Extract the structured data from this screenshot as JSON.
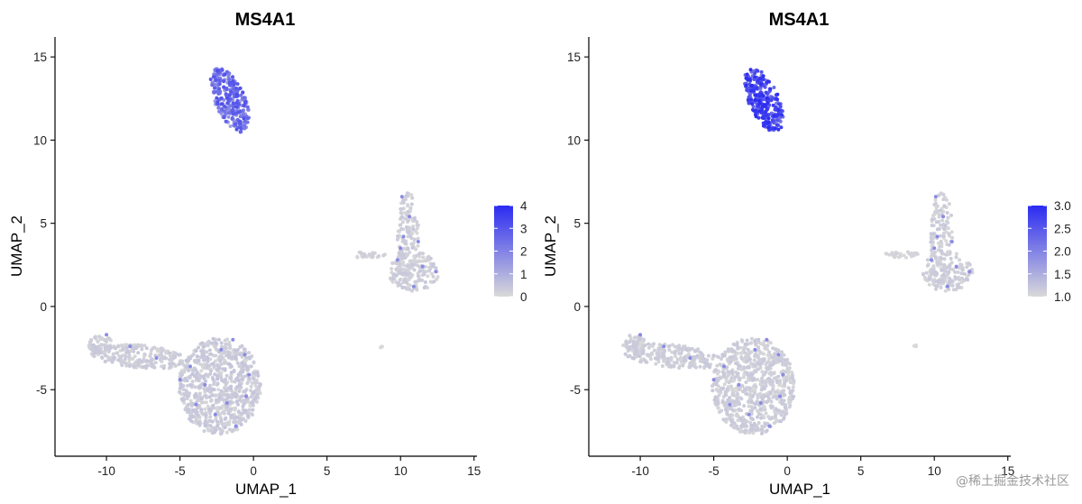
{
  "watermark": "@稀土掘金技术社区",
  "chart_data": [
    {
      "type": "scatter",
      "title": "MS4A1",
      "xlabel": "UMAP_1",
      "ylabel": "UMAP_2",
      "xlim": [
        -13.5,
        15.2
      ],
      "ylim": [
        -9,
        16.2
      ],
      "x_ticks": [
        -10,
        -5,
        0,
        5,
        10,
        15
      ],
      "x_tick_labels": [
        "-10",
        "-5",
        "0",
        "5",
        "10",
        "15"
      ],
      "y_ticks": [
        -5,
        0,
        5,
        10,
        15
      ],
      "y_tick_labels": [
        "-5",
        "0",
        "5",
        "10",
        "15"
      ],
      "legend": {
        "position": "right",
        "type": "colorbar",
        "range": [
          0,
          4
        ],
        "ticks": [
          0,
          1,
          2,
          3,
          4
        ],
        "tick_labels": [
          "0",
          "1",
          "2",
          "3",
          "4"
        ],
        "low_color": "#d9d9d9",
        "high_color": "#2b2bf2"
      },
      "clusters": [
        {
          "shape": "ellipse",
          "cx": -1.6,
          "cy": 12.4,
          "rx": 1.0,
          "ry": 2.1,
          "angle": 28,
          "n": 300,
          "vmin": 1.2,
          "vmax": 3.2
        },
        {
          "shape": "ellipse",
          "cx": 10.5,
          "cy": 4.2,
          "rx": 0.75,
          "ry": 2.7,
          "angle": 0,
          "n": 130,
          "vmin": 0,
          "vmax": 0.4
        },
        {
          "shape": "ellipse",
          "cx": 10.9,
          "cy": 2.1,
          "rx": 1.7,
          "ry": 1.2,
          "angle": 0,
          "n": 150,
          "vmin": 0,
          "vmax": 0.4
        },
        {
          "shape": "ellipse",
          "cx": 7.8,
          "cy": 3.1,
          "rx": 1.2,
          "ry": 0.2,
          "angle": 0,
          "n": 28,
          "vmin": 0,
          "vmax": 0.3
        },
        {
          "shape": "ellipse",
          "cx": -2.3,
          "cy": -4.8,
          "rx": 2.8,
          "ry": 2.9,
          "angle": 0,
          "n": 750,
          "vmin": 0,
          "vmax": 0.5
        },
        {
          "shape": "ellipse",
          "cx": -7.8,
          "cy": -3.0,
          "rx": 3.3,
          "ry": 0.7,
          "angle": -5,
          "n": 220,
          "vmin": 0,
          "vmax": 0.4
        },
        {
          "shape": "ellipse",
          "cx": -10.4,
          "cy": -2.3,
          "rx": 0.8,
          "ry": 0.6,
          "angle": 0,
          "n": 60,
          "vmin": 0,
          "vmax": 0.4
        },
        {
          "shape": "ellipse",
          "cx": 8.7,
          "cy": -2.4,
          "rx": 0.08,
          "ry": 0.12,
          "angle": 0,
          "n": 4,
          "vmin": 0,
          "vmax": 0
        }
      ],
      "highlight_points": [
        [
          10.1,
          6.6
        ],
        [
          10.6,
          5.4
        ],
        [
          10.2,
          4.2
        ],
        [
          11.2,
          3.9
        ],
        [
          10.0,
          3.5
        ],
        [
          9.8,
          2.8
        ],
        [
          11.5,
          2.4
        ],
        [
          12.4,
          2.1
        ],
        [
          10.9,
          1.2
        ],
        [
          -10.0,
          -1.7
        ],
        [
          -8.4,
          -2.4
        ],
        [
          -6.6,
          -3.1
        ],
        [
          -4.3,
          -3.6
        ],
        [
          -2.2,
          -2.6
        ],
        [
          -1.4,
          -2.0
        ],
        [
          -0.6,
          -2.9
        ],
        [
          -3.3,
          -4.7
        ],
        [
          -1.8,
          -5.8
        ],
        [
          -0.5,
          -5.4
        ],
        [
          -2.6,
          -6.5
        ],
        [
          -3.9,
          -5.9
        ],
        [
          -1.2,
          -7.2
        ],
        [
          -5.0,
          -4.4
        ],
        [
          -0.3,
          -4.1
        ]
      ],
      "seed": 7
    },
    {
      "type": "scatter",
      "title": "MS4A1",
      "xlabel": "UMAP_1",
      "ylabel": "UMAP_2",
      "xlim": [
        -13.5,
        15.2
      ],
      "ylim": [
        -9,
        16.2
      ],
      "x_ticks": [
        -10,
        -5,
        0,
        5,
        10,
        15
      ],
      "x_tick_labels": [
        "-10",
        "-5",
        "0",
        "5",
        "10",
        "15"
      ],
      "y_ticks": [
        -5,
        0,
        5,
        10,
        15
      ],
      "y_tick_labels": [
        "-5",
        "0",
        "5",
        "10",
        "15"
      ],
      "legend": {
        "position": "right",
        "type": "colorbar",
        "range": [
          1.0,
          3.0
        ],
        "ticks": [
          1.0,
          1.5,
          2.0,
          2.5,
          3.0
        ],
        "tick_labels": [
          "1.0",
          "1.5",
          "2.0",
          "2.5",
          "3.0"
        ],
        "low_color": "#d9d9d9",
        "high_color": "#2b2bf2"
      },
      "clusters": [
        {
          "shape": "ellipse",
          "cx": -1.6,
          "cy": 12.4,
          "rx": 1.0,
          "ry": 2.1,
          "angle": 28,
          "n": 300,
          "vmin": 2.0,
          "vmax": 3.0
        },
        {
          "shape": "ellipse",
          "cx": 10.5,
          "cy": 4.2,
          "rx": 0.75,
          "ry": 2.7,
          "angle": 0,
          "n": 130,
          "vmin": 1.0,
          "vmax": 1.2
        },
        {
          "shape": "ellipse",
          "cx": 10.9,
          "cy": 2.1,
          "rx": 1.7,
          "ry": 1.2,
          "angle": 0,
          "n": 150,
          "vmin": 1.0,
          "vmax": 1.2
        },
        {
          "shape": "ellipse",
          "cx": 7.8,
          "cy": 3.1,
          "rx": 1.2,
          "ry": 0.2,
          "angle": 0,
          "n": 28,
          "vmin": 1.0,
          "vmax": 1.1
        },
        {
          "shape": "ellipse",
          "cx": -2.3,
          "cy": -4.8,
          "rx": 2.8,
          "ry": 2.9,
          "angle": 0,
          "n": 750,
          "vmin": 1.0,
          "vmax": 1.2
        },
        {
          "shape": "ellipse",
          "cx": -7.8,
          "cy": -3.0,
          "rx": 3.3,
          "ry": 0.7,
          "angle": -5,
          "n": 220,
          "vmin": 1.0,
          "vmax": 1.2
        },
        {
          "shape": "ellipse",
          "cx": -10.4,
          "cy": -2.3,
          "rx": 0.8,
          "ry": 0.6,
          "angle": 0,
          "n": 60,
          "vmin": 1.0,
          "vmax": 1.2
        },
        {
          "shape": "ellipse",
          "cx": 8.7,
          "cy": -2.4,
          "rx": 0.08,
          "ry": 0.12,
          "angle": 0,
          "n": 4,
          "vmin": 1.0,
          "vmax": 1.0
        }
      ],
      "highlight_points": [
        [
          10.1,
          6.6
        ],
        [
          10.6,
          5.4
        ],
        [
          10.2,
          4.2
        ],
        [
          11.2,
          3.9
        ],
        [
          10.0,
          3.5
        ],
        [
          9.8,
          2.8
        ],
        [
          11.5,
          2.4
        ],
        [
          12.4,
          2.1
        ],
        [
          10.9,
          1.2
        ],
        [
          -10.0,
          -1.7
        ],
        [
          -8.4,
          -2.4
        ],
        [
          -6.6,
          -3.1
        ],
        [
          -4.3,
          -3.6
        ],
        [
          -2.2,
          -2.6
        ],
        [
          -1.4,
          -2.0
        ],
        [
          -0.6,
          -2.9
        ],
        [
          -3.3,
          -4.7
        ],
        [
          -1.8,
          -5.8
        ],
        [
          -0.5,
          -5.4
        ],
        [
          -2.6,
          -6.5
        ],
        [
          -3.9,
          -5.9
        ],
        [
          -1.2,
          -7.2
        ],
        [
          -5.0,
          -4.4
        ],
        [
          -0.3,
          -4.1
        ]
      ],
      "seed": 11
    }
  ]
}
